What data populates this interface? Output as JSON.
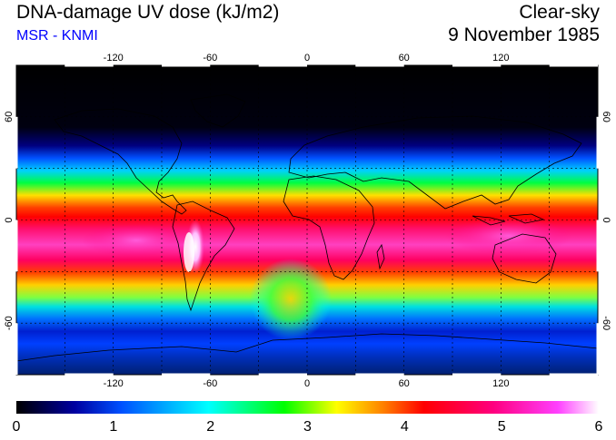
{
  "header": {
    "title": "DNA-damage UV dose (kJ/m2)",
    "source": "MSR - KNMI",
    "condition": "Clear-sky",
    "date": "9 November 1985"
  },
  "colors": {
    "source_text": "#0000ff"
  },
  "map": {
    "lon_ticks": [
      "-120",
      "-60",
      "0",
      "60",
      "120"
    ],
    "lat_ticks": [
      "60",
      "0",
      "-60"
    ]
  },
  "colorbar": {
    "min": 0,
    "max": 6,
    "tick_labels": [
      "0",
      "1",
      "2",
      "3",
      "4",
      "5",
      "6"
    ],
    "stops": [
      "#000000",
      "#0000a0",
      "#0050ff",
      "#00ffff",
      "#00ff00",
      "#ffff00",
      "#ff8000",
      "#ff0000",
      "#ff0080",
      "#ff40ff",
      "#ffffff"
    ]
  }
}
